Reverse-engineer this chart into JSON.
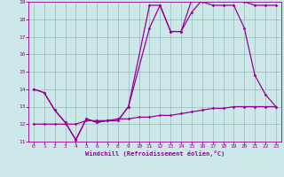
{
  "bg_color": "#cce8e8",
  "line_color": "#990099",
  "grid_color": "#99bbbb",
  "xlim": [
    -0.5,
    23.5
  ],
  "ylim": [
    11,
    19
  ],
  "xticks": [
    0,
    1,
    2,
    3,
    4,
    5,
    6,
    7,
    8,
    9,
    10,
    11,
    12,
    13,
    14,
    15,
    16,
    17,
    18,
    19,
    20,
    21,
    22,
    23
  ],
  "yticks": [
    11,
    12,
    13,
    14,
    15,
    16,
    17,
    18,
    19
  ],
  "xlabel": "Windchill (Refroidissement éolien,°C)",
  "line1_x": [
    0,
    1,
    2,
    3,
    4,
    5,
    6,
    7,
    8,
    9,
    11,
    12,
    13,
    14,
    15,
    16,
    17,
    18,
    19,
    20,
    21,
    22,
    23
  ],
  "line1_y": [
    14.0,
    13.8,
    12.8,
    12.1,
    11.1,
    12.3,
    12.1,
    12.2,
    12.2,
    13.0,
    17.5,
    18.8,
    17.3,
    17.3,
    19.1,
    19.0,
    18.8,
    18.8,
    18.8,
    17.5,
    14.8,
    13.7,
    13.0
  ],
  "line2_x": [
    0,
    1,
    2,
    3,
    4,
    5,
    6,
    7,
    8,
    9,
    11,
    12,
    13,
    14,
    15,
    16,
    17,
    18,
    19,
    20,
    21,
    22,
    23
  ],
  "line2_y": [
    14.0,
    13.8,
    12.8,
    12.1,
    11.1,
    12.3,
    12.1,
    12.2,
    12.2,
    13.0,
    18.8,
    18.8,
    17.3,
    17.3,
    18.4,
    19.1,
    19.1,
    19.1,
    19.1,
    19.0,
    18.8,
    18.8,
    18.8
  ],
  "line3_x": [
    0,
    1,
    2,
    3,
    4,
    5,
    6,
    7,
    8,
    9,
    10,
    11,
    12,
    13,
    14,
    15,
    16,
    17,
    18,
    19,
    20,
    21,
    22,
    23
  ],
  "line3_y": [
    12.0,
    12.0,
    12.0,
    12.0,
    12.0,
    12.2,
    12.2,
    12.2,
    12.3,
    12.3,
    12.4,
    12.4,
    12.5,
    12.5,
    12.6,
    12.7,
    12.8,
    12.9,
    12.9,
    13.0,
    13.0,
    13.0,
    13.0,
    13.0
  ]
}
